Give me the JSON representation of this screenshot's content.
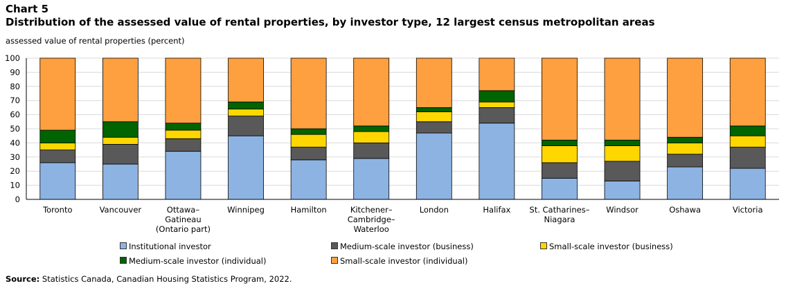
{
  "header": {
    "chart_label": "Chart 5",
    "title": "Distribution  of the assessed value of rental properties, by investor type, 12 largest census metropolitan areas",
    "y_title": "assessed value of rental properties (percent)"
  },
  "source": {
    "label": "Source:",
    "text": " Statistics Canada, Canadian Housing Statistics Program, 2022."
  },
  "chart_data": {
    "type": "bar",
    "stacked": true,
    "categories": [
      [
        "Toronto"
      ],
      [
        "Vancouver"
      ],
      [
        "Ottawa–",
        "Gatineau",
        "(Ontario part)"
      ],
      [
        "Winnipeg"
      ],
      [
        "Hamilton"
      ],
      [
        "Kitchener–",
        "Cambridge–",
        "Waterloo"
      ],
      [
        "London"
      ],
      [
        "Halifax"
      ],
      [
        "St. Catharines–",
        "Niagara"
      ],
      [
        "Windsor"
      ],
      [
        "Oshawa"
      ],
      [
        "Victoria"
      ]
    ],
    "series": [
      {
        "name": "Institutional investor",
        "color": "#8db3e2",
        "values": [
          26,
          25,
          34,
          45,
          28,
          29,
          47,
          54,
          15,
          13,
          23,
          22
        ]
      },
      {
        "name": "Medium-scale investor (business)",
        "color": "#595959",
        "values": [
          9,
          14,
          9,
          14,
          9,
          11,
          8,
          11,
          11,
          14,
          9,
          15
        ]
      },
      {
        "name": "Small-scale investor (business)",
        "color": "#ffd700",
        "values": [
          5,
          5,
          6,
          5,
          9,
          8,
          7,
          4,
          12,
          11,
          8,
          8
        ]
      },
      {
        "name": "Medium-scale investor (individual)",
        "color": "#006400",
        "values": [
          9,
          11,
          5,
          5,
          4,
          4,
          3,
          8,
          4,
          4,
          4,
          7
        ]
      },
      {
        "name": "Small-scale investor (individual)",
        "color": "#ffa040",
        "values": [
          51,
          45,
          46,
          31,
          50,
          48,
          35,
          23,
          58,
          58,
          56,
          48
        ]
      }
    ],
    "y_ticks": [
      0,
      10,
      20,
      30,
      40,
      50,
      60,
      70,
      80,
      90,
      100
    ],
    "ylim": [
      0,
      100
    ],
    "grid": true,
    "legend_position": "bottom"
  }
}
